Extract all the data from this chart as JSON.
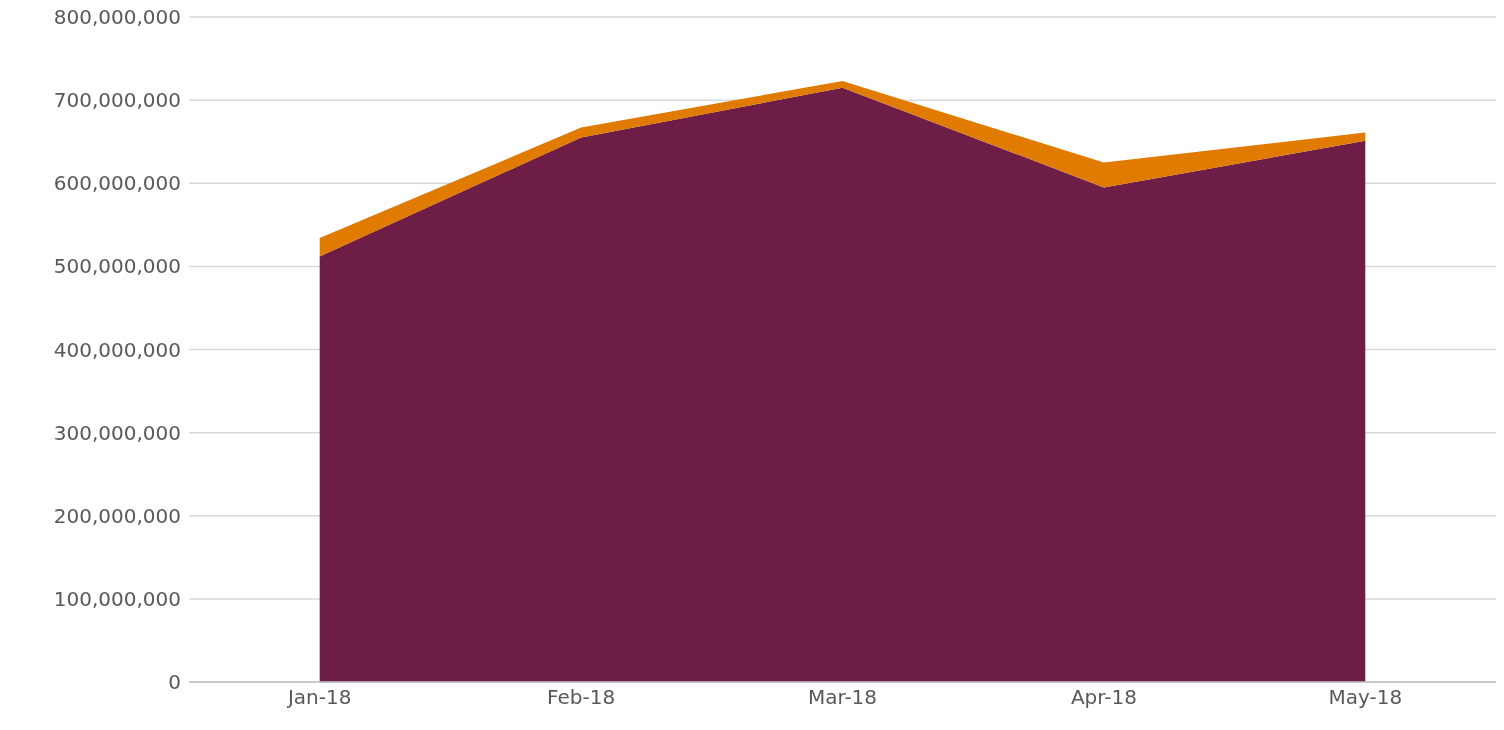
{
  "chart_data": {
    "type": "area",
    "stacked": true,
    "categories": [
      "Jan-18",
      "Feb-18",
      "Mar-18",
      "Apr-18",
      "May-18"
    ],
    "series": [
      {
        "color": "#6d1d46",
        "values": [
          512000000,
          655000000,
          715000000,
          595000000,
          651000000
        ]
      },
      {
        "color": "#e07b00",
        "values": [
          22000000,
          12000000,
          8000000,
          30000000,
          10000000
        ]
      }
    ],
    "ylim": [
      0,
      800000000
    ],
    "yticks": [
      0,
      {
        "value": 100000000,
        "label": "100,000,000"
      },
      {
        "value": 200000000,
        "label": "200,000,000"
      },
      {
        "value": 300000000,
        "label": "300,000,000"
      },
      {
        "value": 400000000,
        "label": "400,000,000"
      },
      {
        "value": 500000000,
        "label": "500,000,000"
      },
      {
        "value": 600000000,
        "label": "600,000,000"
      },
      {
        "value": 700000000,
        "label": "700,000,000"
      },
      {
        "value": 800000000,
        "label": "800,000,000"
      }
    ],
    "grid": "y"
  }
}
